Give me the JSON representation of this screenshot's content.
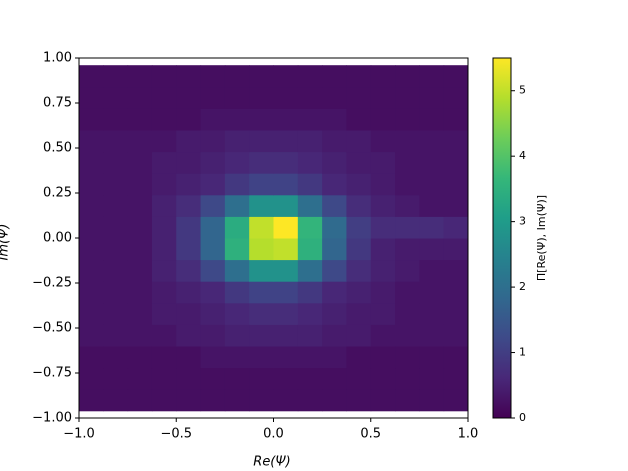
{
  "chart_data": {
    "type": "heatmap",
    "xlabel": "Re(Ψ)",
    "ylabel": "Im(Ψ)",
    "colorbar_label": "Π[Re(Ψ), Im(Ψ)]",
    "colormap": "viridis",
    "clim": [
      0,
      5.5
    ],
    "xlim": [
      -1.0,
      1.0
    ],
    "ylim": [
      -1.0,
      1.0
    ],
    "xticks": [
      {
        "value": -1.0,
        "label": "−1.0"
      },
      {
        "value": -0.5,
        "label": "−0.5"
      },
      {
        "value": 0,
        "label": "0.0"
      },
      {
        "value": 0.5,
        "label": "0.5"
      },
      {
        "value": 1.0,
        "label": "1.0"
      }
    ],
    "yticks": [
      {
        "value": -1.0,
        "label": "−1.00"
      },
      {
        "value": -0.75,
        "label": "−0.75"
      },
      {
        "value": -0.5,
        "label": "−0.50"
      },
      {
        "value": -0.25,
        "label": "−0.25"
      },
      {
        "value": 0,
        "label": "0.00"
      },
      {
        "value": 0.25,
        "label": "0.25"
      },
      {
        "value": 0.5,
        "label": "0.50"
      },
      {
        "value": 0.75,
        "label": "0.75"
      },
      {
        "value": 1.0,
        "label": "1.00"
      }
    ],
    "cticks": [
      0,
      1,
      2,
      3,
      4,
      5
    ],
    "xbins": [
      -1.0,
      -0.875,
      -0.75,
      -0.625,
      -0.5,
      -0.375,
      -0.25,
      -0.125,
      0,
      0.125,
      0.25,
      0.375,
      0.5,
      0.625,
      0.75,
      0.875,
      1.0
    ],
    "ybins": [
      -0.96,
      -0.84,
      -0.72,
      -0.6,
      -0.48,
      -0.36,
      -0.24,
      -0.12,
      0,
      0.12,
      0.24,
      0.36,
      0.48,
      0.6,
      0.72,
      0.84,
      0.96
    ],
    "z": [
      [
        0.2,
        0.2,
        0.2,
        0.2,
        0.2,
        0.2,
        0.2,
        0.2,
        0.2,
        0.2,
        0.2,
        0.2,
        0.2,
        0.2,
        0.2,
        0.2
      ],
      [
        0.2,
        0.2,
        0.2,
        0.2,
        0.2,
        0.2,
        0.2,
        0.2,
        0.2,
        0.2,
        0.2,
        0.2,
        0.2,
        0.2,
        0.2,
        0.2
      ],
      [
        0.2,
        0.2,
        0.2,
        0.2,
        0.2,
        0.3,
        0.3,
        0.3,
        0.3,
        0.3,
        0.3,
        0.2,
        0.2,
        0.2,
        0.2,
        0.2
      ],
      [
        0.3,
        0.3,
        0.3,
        0.3,
        0.4,
        0.4,
        0.5,
        0.5,
        0.5,
        0.5,
        0.4,
        0.4,
        0.3,
        0.3,
        0.3,
        0.3
      ],
      [
        0.3,
        0.3,
        0.3,
        0.4,
        0.4,
        0.5,
        0.6,
        0.7,
        0.7,
        0.6,
        0.5,
        0.4,
        0.4,
        0.3,
        0.3,
        0.3
      ],
      [
        0.3,
        0.3,
        0.3,
        0.4,
        0.5,
        0.6,
        0.9,
        1.1,
        1.1,
        0.9,
        0.6,
        0.5,
        0.4,
        0.3,
        0.3,
        0.3
      ],
      [
        0.3,
        0.3,
        0.3,
        0.5,
        0.7,
        1.2,
        2.0,
        2.8,
        2.8,
        2.0,
        1.2,
        0.7,
        0.5,
        0.4,
        0.3,
        0.3
      ],
      [
        0.3,
        0.3,
        0.3,
        0.5,
        0.9,
        1.8,
        3.5,
        4.9,
        5.0,
        3.5,
        1.8,
        0.9,
        0.5,
        0.4,
        0.4,
        0.4
      ],
      [
        0.3,
        0.3,
        0.3,
        0.5,
        0.9,
        1.8,
        3.4,
        5.0,
        5.5,
        3.6,
        1.9,
        1.0,
        0.7,
        0.7,
        0.7,
        0.6
      ],
      [
        0.3,
        0.3,
        0.3,
        0.5,
        0.7,
        1.2,
        2.0,
        2.8,
        2.8,
        2.0,
        1.2,
        0.7,
        0.5,
        0.4,
        0.3,
        0.3
      ],
      [
        0.3,
        0.3,
        0.3,
        0.4,
        0.5,
        0.6,
        0.9,
        1.1,
        1.1,
        0.9,
        0.6,
        0.5,
        0.4,
        0.3,
        0.3,
        0.3
      ],
      [
        0.3,
        0.3,
        0.3,
        0.4,
        0.4,
        0.5,
        0.6,
        0.7,
        0.7,
        0.6,
        0.5,
        0.4,
        0.4,
        0.3,
        0.3,
        0.3
      ],
      [
        0.3,
        0.3,
        0.3,
        0.3,
        0.4,
        0.4,
        0.5,
        0.5,
        0.5,
        0.5,
        0.4,
        0.4,
        0.3,
        0.3,
        0.3,
        0.3
      ],
      [
        0.2,
        0.2,
        0.2,
        0.2,
        0.2,
        0.3,
        0.3,
        0.3,
        0.3,
        0.3,
        0.3,
        0.2,
        0.2,
        0.2,
        0.2,
        0.2
      ],
      [
        0.2,
        0.2,
        0.2,
        0.2,
        0.2,
        0.2,
        0.2,
        0.2,
        0.2,
        0.2,
        0.2,
        0.2,
        0.2,
        0.2,
        0.2,
        0.2
      ],
      [
        0.2,
        0.2,
        0.2,
        0.2,
        0.2,
        0.2,
        0.2,
        0.2,
        0.2,
        0.2,
        0.2,
        0.2,
        0.2,
        0.2,
        0.2,
        0.2
      ]
    ]
  }
}
